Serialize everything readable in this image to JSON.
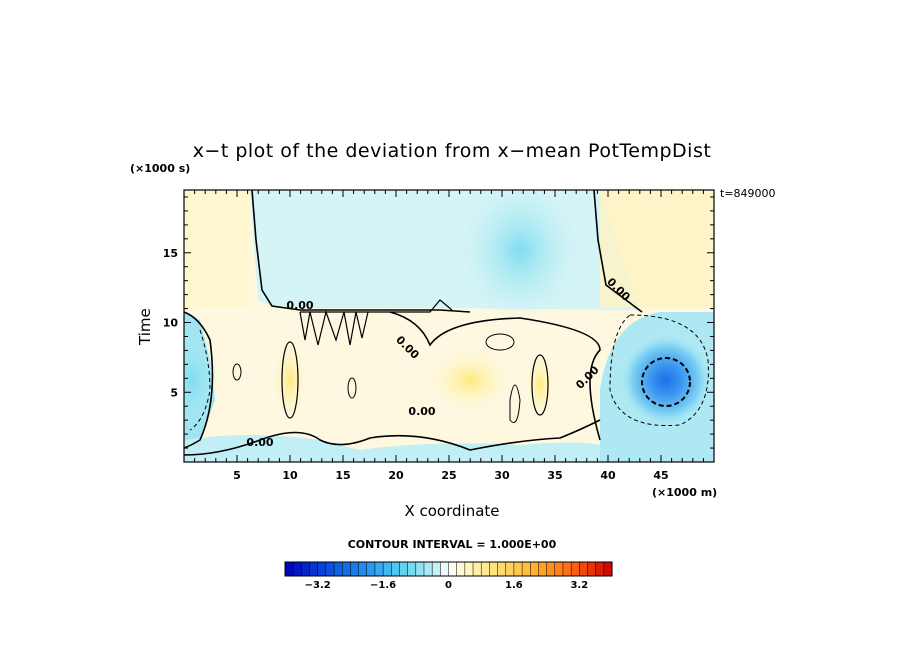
{
  "chart_data": {
    "type": "heatmap",
    "title": "x−t plot of the deviation from x−mean PotTempDist",
    "xlabel": "X coordinate",
    "ylabel": "Time",
    "x_unit": "(×1000 m)",
    "y_unit": "(×1000 s)",
    "time_label": "t=849000",
    "xlim": [
      0,
      50
    ],
    "ylim": [
      0,
      19.5
    ],
    "x_ticks": [
      "5",
      "10",
      "15",
      "20",
      "25",
      "30",
      "35",
      "40",
      "45"
    ],
    "y_ticks": [
      "5",
      "10",
      "15"
    ],
    "contour_interval_text": "CONTOUR INTERVAL = 1.000E+00",
    "contour_labels": [
      "0.00",
      "0.00",
      "0.00",
      "0.00",
      "0.00",
      "0.00"
    ],
    "colorbar": {
      "min": -4.0,
      "max": 4.0,
      "ticks": [
        "−3.2",
        "−1.6",
        "0",
        "1.6",
        "3.2"
      ]
    },
    "features": [
      {
        "x": 46,
        "y": 6,
        "value": -3.0
      },
      {
        "x": 2,
        "y": 7,
        "value": -1.0
      },
      {
        "x": 10,
        "y": 7,
        "value": 0.8
      },
      {
        "x": 33,
        "y": 7,
        "value": 0.6
      },
      {
        "x": 28,
        "y": 16,
        "value": -0.4
      }
    ]
  },
  "colors": {
    "cold": "#1e64e0",
    "neutral": "#ffffff",
    "warm": "#ffe680",
    "axis": "#000000"
  }
}
